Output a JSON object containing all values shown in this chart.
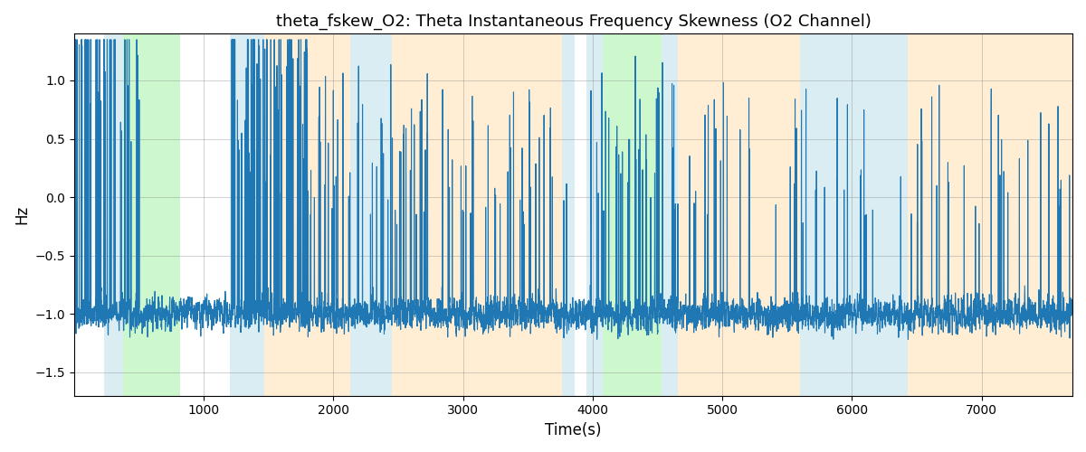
{
  "title": "theta_fskew_O2: Theta Instantaneous Frequency Skewness (O2 Channel)",
  "xlabel": "Time(s)",
  "ylabel": "Hz",
  "xlim": [
    0,
    7700
  ],
  "ylim": [
    -1.7,
    1.4
  ],
  "background_color": "#ffffff",
  "line_color": "#1f77b4",
  "line_width": 0.8,
  "grid": true,
  "figsize": [
    12,
    5
  ],
  "dpi": 100,
  "xticks": [
    1000,
    2000,
    3000,
    4000,
    5000,
    6000,
    7000
  ],
  "bands": [
    {
      "xmin": 230,
      "xmax": 380,
      "color": "#add8e6",
      "alpha": 0.45
    },
    {
      "xmin": 380,
      "xmax": 820,
      "color": "#90ee90",
      "alpha": 0.45
    },
    {
      "xmin": 1200,
      "xmax": 1470,
      "color": "#add8e6",
      "alpha": 0.45
    },
    {
      "xmin": 1470,
      "xmax": 2130,
      "color": "#ffd8a0",
      "alpha": 0.45
    },
    {
      "xmin": 2130,
      "xmax": 2450,
      "color": "#add8e6",
      "alpha": 0.45
    },
    {
      "xmin": 2450,
      "xmax": 3760,
      "color": "#ffd8a0",
      "alpha": 0.45
    },
    {
      "xmin": 3760,
      "xmax": 3860,
      "color": "#add8e6",
      "alpha": 0.45
    },
    {
      "xmin": 3950,
      "xmax": 4080,
      "color": "#add8e6",
      "alpha": 0.45
    },
    {
      "xmin": 4080,
      "xmax": 4530,
      "color": "#90ee90",
      "alpha": 0.45
    },
    {
      "xmin": 4530,
      "xmax": 4660,
      "color": "#add8e6",
      "alpha": 0.45
    },
    {
      "xmin": 4660,
      "xmax": 5600,
      "color": "#ffd8a0",
      "alpha": 0.45
    },
    {
      "xmin": 5600,
      "xmax": 6260,
      "color": "#add8e6",
      "alpha": 0.45
    },
    {
      "xmin": 6260,
      "xmax": 6430,
      "color": "#add8e6",
      "alpha": 0.45
    },
    {
      "xmin": 6430,
      "xmax": 6590,
      "color": "#ffd8a0",
      "alpha": 0.45
    },
    {
      "xmin": 6590,
      "xmax": 7700,
      "color": "#ffd8a0",
      "alpha": 0.45
    }
  ],
  "seed": 42,
  "n_points": 7700
}
